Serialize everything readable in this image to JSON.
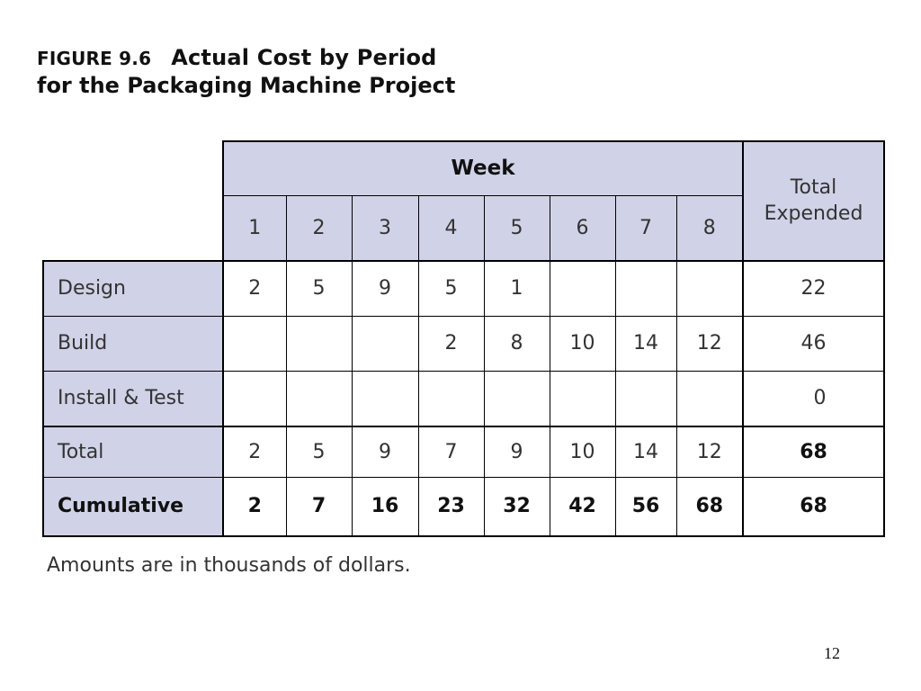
{
  "figure": {
    "label": "FIGURE 9.6",
    "title_line1": "Actual Cost by Period",
    "title_line2": "for the Packaging Machine Project"
  },
  "table": {
    "group_header": "Week",
    "total_header_line1": "Total",
    "total_header_line2": "Expended",
    "weeks": [
      "1",
      "2",
      "3",
      "4",
      "5",
      "6",
      "7",
      "8"
    ],
    "rows": [
      {
        "label": "Design",
        "values": [
          "2",
          "5",
          "9",
          "5",
          "1",
          "",
          "",
          ""
        ],
        "total": "22"
      },
      {
        "label": "Build",
        "values": [
          "",
          "",
          "",
          "2",
          "8",
          "10",
          "14",
          "12"
        ],
        "total": "46"
      },
      {
        "label": "Install & Test",
        "values": [
          "",
          "",
          "",
          "",
          "",
          "",
          "",
          ""
        ],
        "total": "0"
      },
      {
        "label": "Total",
        "values": [
          "2",
          "5",
          "9",
          "7",
          "9",
          "10",
          "14",
          "12"
        ],
        "total": "68"
      },
      {
        "label": "Cumulative",
        "values": [
          "2",
          "7",
          "16",
          "23",
          "32",
          "42",
          "56",
          "68"
        ],
        "total": "68"
      }
    ]
  },
  "footnote": "Amounts are in thousands of dollars.",
  "page_number": "12",
  "colors": {
    "header_shade": "#d0d3e7",
    "border": "#000000"
  }
}
